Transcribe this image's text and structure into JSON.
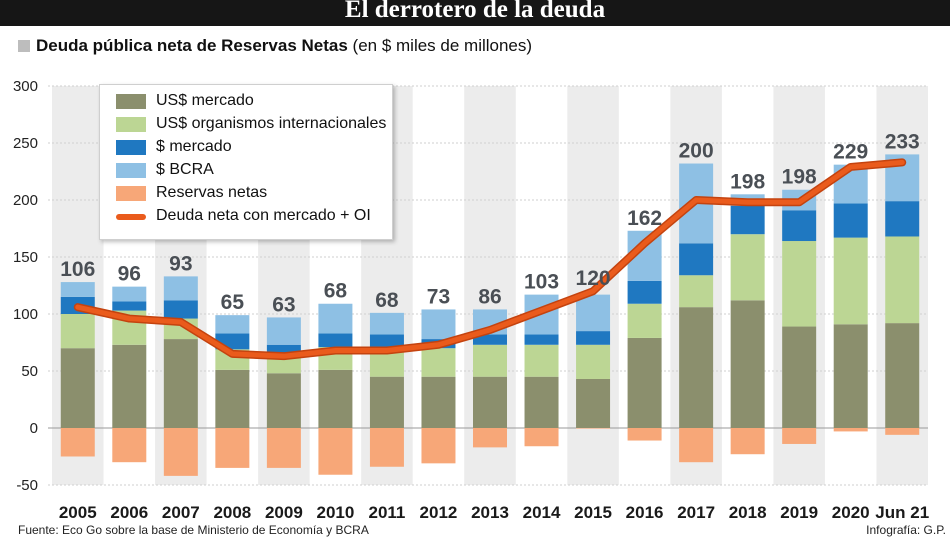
{
  "header": {
    "title": "El derrotero de la deuda"
  },
  "subtitle": {
    "bold": "Deuda pública neta de Reservas Netas",
    "unit": "(en $ miles de millones)"
  },
  "colors": {
    "us_mercado": "#8b8f6d",
    "us_oi": "#bcd694",
    "peso_mercado": "#1f78c1",
    "bcra": "#8ec0e4",
    "reservas": "#f7a778",
    "line": "#ea5b1c",
    "band": "#ececec"
  },
  "legend": {
    "items": [
      {
        "key": "us_mercado",
        "label": "US$ mercado"
      },
      {
        "key": "us_oi",
        "label": "US$ organismos internacionales"
      },
      {
        "key": "peso_mercado",
        "label": "$ mercado"
      },
      {
        "key": "bcra",
        "label": "$ BCRA"
      },
      {
        "key": "reservas",
        "label": "Reservas netas"
      },
      {
        "key": "line",
        "label": "Deuda neta con mercado + OI"
      }
    ]
  },
  "chart_data": {
    "type": "bar",
    "stacked": true,
    "title": "Deuda pública neta de Reservas Netas",
    "ylabel": "en $ miles de millones",
    "ylim": [
      -50,
      300
    ],
    "yticks": [
      -50,
      0,
      50,
      100,
      150,
      200,
      250,
      300
    ],
    "categories": [
      "2005",
      "2006",
      "2007",
      "2008",
      "2009",
      "2010",
      "2011",
      "2012",
      "2013",
      "2014",
      "2015",
      "2016",
      "2017",
      "2018",
      "2019",
      "2020",
      "Jun 21"
    ],
    "series": [
      {
        "name": "US$ mercado",
        "key": "us_mercado",
        "values": [
          70,
          73,
          78,
          51,
          48,
          51,
          45,
          45,
          45,
          45,
          43,
          79,
          106,
          112,
          89,
          91,
          92
        ]
      },
      {
        "name": "US$ organismos internacionales",
        "key": "us_oi",
        "values": [
          30,
          30,
          18,
          18,
          15,
          20,
          23,
          25,
          28,
          28,
          30,
          30,
          28,
          58,
          75,
          76,
          76
        ]
      },
      {
        "name": "$ mercado",
        "key": "peso_mercado",
        "values": [
          15,
          8,
          16,
          14,
          10,
          12,
          14,
          8,
          9,
          9,
          12,
          20,
          28,
          25,
          27,
          30,
          31
        ]
      },
      {
        "name": "$ BCRA",
        "key": "bcra",
        "values": [
          13,
          13,
          21,
          16,
          24,
          26,
          19,
          26,
          22,
          35,
          32,
          44,
          70,
          10,
          18,
          34,
          41
        ]
      },
      {
        "name": "Reservas netas",
        "key": "reservas",
        "values": [
          -25,
          -30,
          -42,
          -35,
          -35,
          -41,
          -34,
          -31,
          -17,
          -16,
          -0.5,
          -11,
          -30,
          -23,
          -14,
          -3,
          -6
        ]
      }
    ],
    "line": {
      "name": "Deuda neta con mercado + OI",
      "values": [
        106,
        96,
        93,
        65,
        63,
        68,
        68,
        73,
        86,
        103,
        120,
        162,
        200,
        198,
        198,
        229,
        233
      ]
    },
    "line_labels": [
      "106",
      "96",
      "93",
      "65",
      "63",
      "68",
      "68",
      "73",
      "86",
      "103",
      "120",
      "162",
      "200",
      "198",
      "198",
      "229",
      "233"
    ]
  },
  "footer": {
    "source": "Fuente: Eco Go sobre la base de Ministerio de Economía y BCRA",
    "credit": "Infografía: G.P."
  }
}
